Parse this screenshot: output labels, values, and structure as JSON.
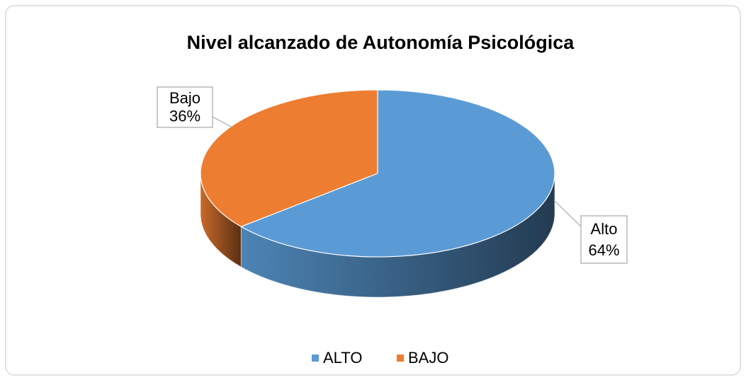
{
  "chart_data": {
    "type": "pie3d",
    "title": "Nivel alcanzado de Autonomía Psicológica",
    "categories": [
      "ALTO",
      "BAJO"
    ],
    "values": [
      64,
      36
    ],
    "data_label_names": [
      "Alto",
      "Bajo"
    ],
    "value_labels": [
      "64%",
      "36%"
    ],
    "colors": [
      "#5b9bd5",
      "#ed7d31"
    ],
    "legend": "bottom"
  }
}
